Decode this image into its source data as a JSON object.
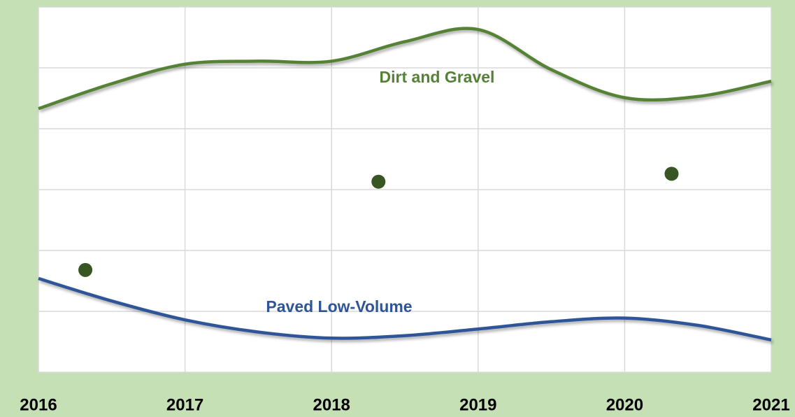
{
  "chart_data": {
    "type": "line",
    "xlim": [
      2016,
      2021
    ],
    "xticks": [
      2016,
      2017,
      2018,
      2019,
      2020,
      2021
    ],
    "ylim": [
      0,
      6
    ],
    "yticks": [
      0,
      1,
      2,
      3,
      4,
      5,
      6
    ],
    "grid": true,
    "x": [
      2016,
      2016.5,
      2017,
      2017.5,
      2018,
      2018.5,
      2019,
      2019.5,
      2020,
      2020.5,
      2021
    ],
    "series": [
      {
        "name": "Dirt and Gravel",
        "color": "#548235",
        "values": [
          4.33,
          4.74,
          5.06,
          5.11,
          5.11,
          5.43,
          5.63,
          4.97,
          4.51,
          4.53,
          4.78
        ]
      },
      {
        "name": "Paved Low-Volume",
        "color": "#2f5597",
        "values": [
          1.54,
          1.17,
          0.86,
          0.66,
          0.56,
          0.6,
          0.71,
          0.83,
          0.89,
          0.77,
          0.53
        ]
      }
    ],
    "points": {
      "color": "#375623",
      "x": [
        2016.32,
        2018.32,
        2020.32
      ],
      "values": [
        1.68,
        3.13,
        3.26
      ]
    }
  }
}
